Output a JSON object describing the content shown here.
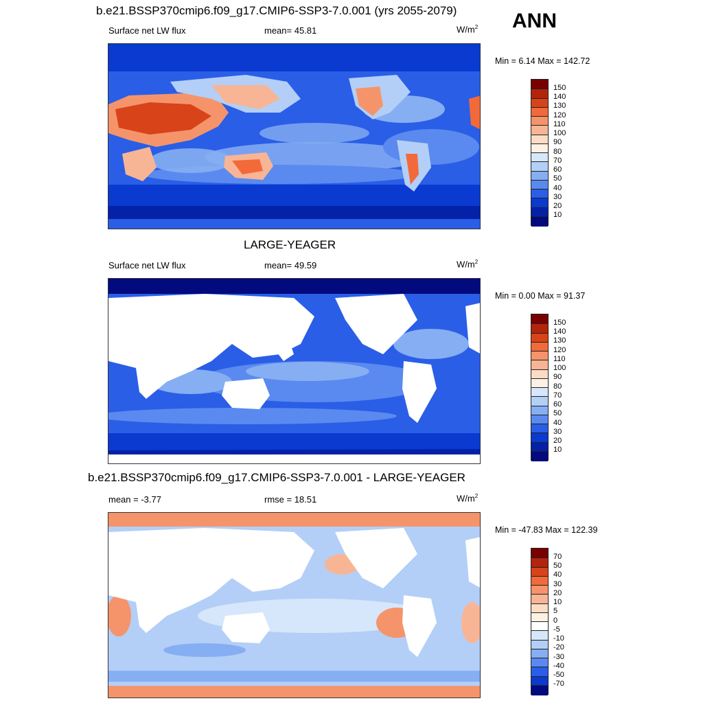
{
  "season": "ANN",
  "panels": [
    {
      "title": "b.e21.BSSP370cmip6.f09_g17.CMIP6-SSP3-7.0.001 (yrs 2055-2079)",
      "left_label": "Surface net LW flux",
      "center_label": "mean=  45.81",
      "units_base": "W/m",
      "units_sup": "2",
      "minmax": "Min =   6.14 Max = 142.72",
      "colorbar_labels": [
        "150",
        "140",
        "130",
        "120",
        "110",
        "100",
        "90",
        "80",
        "70",
        "60",
        "50",
        "40",
        "30",
        "20",
        "10"
      ],
      "colors": [
        "#7a0000",
        "#b3240c",
        "#d8431a",
        "#f26a3a",
        "#f5946a",
        "#f8b595",
        "#fcdcc5",
        "#fdf1e4",
        "#d6e7fb",
        "#b3cff7",
        "#86aef2",
        "#5a8aef",
        "#2a5ee7",
        "#0a3ad0",
        "#0421a8",
        "#020a7d"
      ]
    },
    {
      "title": "LARGE-YEAGER",
      "left_label": "Surface net LW flux",
      "center_label": "mean=  49.59",
      "units_base": "W/m",
      "units_sup": "2",
      "minmax": "Min =   0.00 Max =  91.37",
      "colorbar_labels": [
        "150",
        "140",
        "130",
        "120",
        "110",
        "100",
        "90",
        "80",
        "70",
        "60",
        "50",
        "40",
        "30",
        "20",
        "10"
      ],
      "colors": [
        "#7a0000",
        "#b3240c",
        "#d8431a",
        "#f26a3a",
        "#f5946a",
        "#f8b595",
        "#fcdcc5",
        "#fdf1e4",
        "#d6e7fb",
        "#b3cff7",
        "#86aef2",
        "#5a8aef",
        "#2a5ee7",
        "#0a3ad0",
        "#0421a8",
        "#020a7d"
      ]
    },
    {
      "title": "b.e21.BSSP370cmip6.f09_g17.CMIP6-SSP3-7.0.001 - LARGE-YEAGER",
      "left_label": "mean =  -3.77",
      "center_label": "rmse =  18.51",
      "units_base": "W/m",
      "units_sup": "2",
      "minmax": "Min = -47.83 Max = 122.39",
      "colorbar_labels": [
        "70",
        "50",
        "40",
        "30",
        "20",
        "10",
        "5",
        "0",
        "-5",
        "-10",
        "-20",
        "-30",
        "-40",
        "-50",
        "-70"
      ],
      "colors": [
        "#7a0000",
        "#b3240c",
        "#d8431a",
        "#f26a3a",
        "#f5946a",
        "#f8b595",
        "#fcdcc5",
        "#fdf1e4",
        "#ffffff",
        "#d6e7fb",
        "#b3cff7",
        "#86aef2",
        "#5a8aef",
        "#2a5ee7",
        "#0a3ad0",
        "#020a7d"
      ]
    }
  ]
}
